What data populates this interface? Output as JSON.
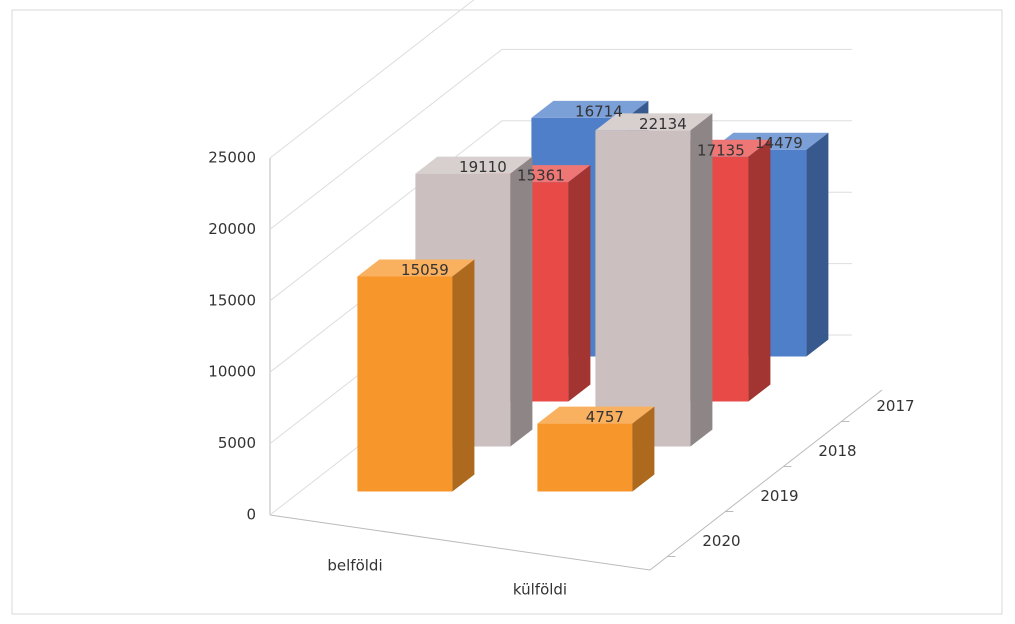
{
  "chart_data": {
    "type": "bar3d",
    "categories": [
      "belföldi",
      "külföldi"
    ],
    "series": [
      {
        "name": "2017",
        "color": "#4f7fc9",
        "values": [
          16714,
          14479
        ]
      },
      {
        "name": "2018",
        "color": "#e84a48",
        "values": [
          15361,
          17135
        ]
      },
      {
        "name": "2019",
        "color": "#cbbfbf",
        "values": [
          19110,
          22134
        ]
      },
      {
        "name": "2020",
        "color": "#f7962a",
        "values": [
          15059,
          4757
        ]
      }
    ],
    "ylim": [
      0,
      25000
    ],
    "yticks": [
      0,
      5000,
      10000,
      15000,
      20000,
      25000
    ],
    "grid": true
  }
}
